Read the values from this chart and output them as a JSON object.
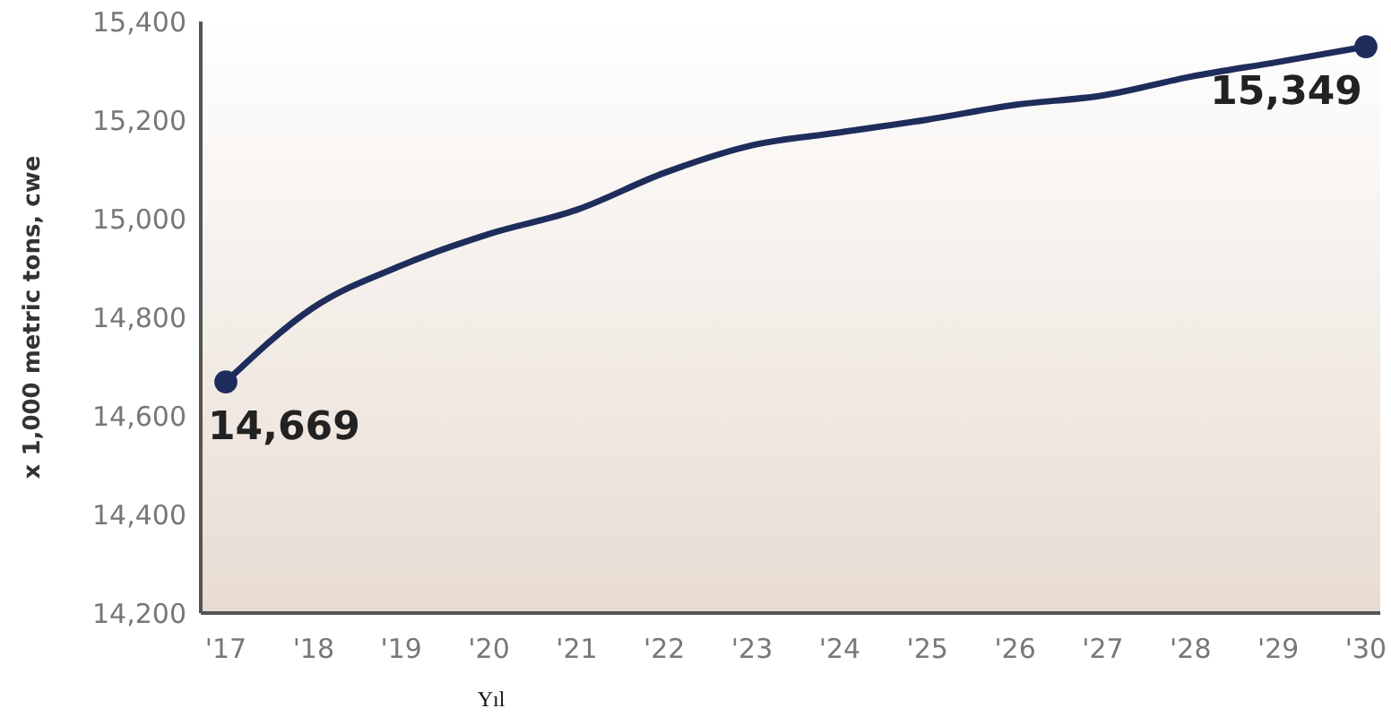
{
  "chart_data": {
    "type": "line",
    "xlabel": "Yıl",
    "ylabel": "x 1,000 metric tons, cwe",
    "categories": [
      "'17",
      "'18",
      "'19",
      "'20",
      "'21",
      "'22",
      "'23",
      "'24",
      "'25",
      "'26",
      "'27",
      "'28",
      "'29",
      "'30"
    ],
    "series": [
      {
        "color": "#1f2d5c",
        "values": [
          14669,
          14820,
          14905,
          14969,
          15018,
          15093,
          15149,
          15175,
          15201,
          15231,
          15250,
          15288,
          15318,
          15349
        ],
        "marker": "none"
      },
      {
        "type": "scatter",
        "color": "#1f2d5c",
        "x": [
          "'17",
          "'30"
        ],
        "values": [
          14669,
          15349
        ],
        "marker": "circle",
        "value_labels": [
          "14,669",
          "15,349"
        ]
      }
    ],
    "ylim": [
      14200,
      15400
    ],
    "yticks": [
      {
        "value": 14200,
        "label": "14,200"
      },
      {
        "value": 14400,
        "label": "14,400"
      },
      {
        "value": 14600,
        "label": "14,600"
      },
      {
        "value": 14800,
        "label": "14,800"
      },
      {
        "value": 15000,
        "label": "15,000"
      },
      {
        "value": 15200,
        "label": "15,200"
      },
      {
        "value": 15400,
        "label": "15,400"
      }
    ],
    "grid": false
  }
}
